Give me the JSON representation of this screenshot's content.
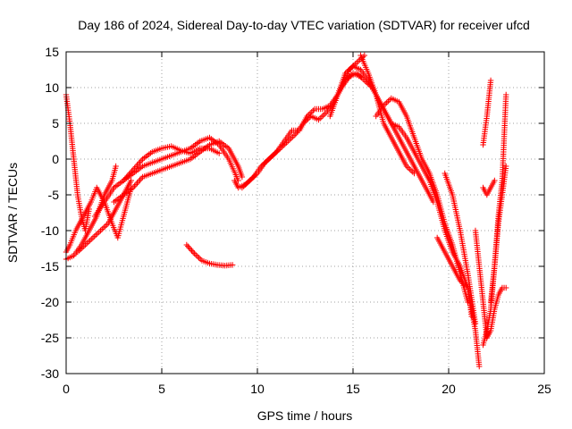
{
  "chart_data": {
    "type": "scatter",
    "title": "Day 186 of 2024, Sidereal Day-to-day VTEC variation (SDTVAR) for receiver ufcd",
    "xlabel": "GPS time / hours",
    "ylabel": "SDTVAR / TECUs",
    "xlim": [
      0,
      25
    ],
    "ylim": [
      -30,
      15
    ],
    "xticks": [
      "0",
      "5",
      "10",
      "15",
      "20",
      "25"
    ],
    "yticks": [
      "-30",
      "-25",
      "-20",
      "-15",
      "-10",
      "-5",
      "0",
      "5",
      "10",
      "15"
    ],
    "grid": true,
    "marker": "+",
    "color": "#ff0000",
    "series": [
      {
        "x": [
          0.0,
          0.2,
          0.4,
          0.6,
          0.8,
          1.0,
          1.2
        ],
        "y": [
          9,
          5,
          0,
          -5,
          -8,
          -10,
          -7
        ]
      },
      {
        "x": [
          0.0,
          0.2,
          0.5,
          0.9,
          1.3,
          1.6,
          2.0,
          2.4,
          2.7,
          3.0,
          3.4
        ],
        "y": [
          -13,
          -12,
          -10,
          -8,
          -6,
          -4,
          -6,
          -9,
          -11,
          -8,
          -4
        ]
      },
      {
        "x": [
          0.0,
          0.4,
          0.8,
          1.2,
          1.6,
          2.0,
          2.4,
          2.6
        ],
        "y": [
          -14,
          -13.5,
          -12,
          -10,
          -8,
          -5,
          -3,
          -1
        ]
      },
      {
        "x": [
          0.6,
          1.0,
          1.4,
          1.8,
          2.2,
          2.6,
          3.0,
          3.4
        ],
        "y": [
          -13,
          -12,
          -11,
          -10,
          -9,
          -7,
          -5,
          -3
        ]
      },
      {
        "x": [
          1.5,
          2.0,
          2.5,
          3.0,
          3.5,
          4.0,
          4.5,
          5.0,
          5.5,
          6.0,
          6.5,
          7.0,
          7.5,
          8.0,
          8.5,
          9.0
        ],
        "y": [
          -8,
          -6,
          -4,
          -3,
          -2,
          -1,
          -0.5,
          0,
          0.5,
          1,
          1.5,
          2.5,
          3,
          2,
          0,
          -3
        ]
      },
      {
        "x": [
          3.0,
          3.5,
          4.0,
          4.5,
          5.0,
          5.5,
          6.0,
          6.5,
          7.0,
          7.5,
          8.0
        ],
        "y": [
          -3,
          -1.5,
          0,
          1,
          1.5,
          1.8,
          1.2,
          0.8,
          1.5,
          1.5,
          0.8
        ]
      },
      {
        "x": [
          2.5,
          3.0,
          3.5,
          4.0,
          4.5,
          5.0,
          5.5,
          6.0,
          6.5,
          7.0,
          7.5,
          8.0,
          8.5,
          9.0,
          9.2
        ],
        "y": [
          -6,
          -5,
          -4,
          -2.5,
          -2,
          -1.5,
          -1,
          -0.5,
          0,
          1,
          2,
          2.5,
          1.5,
          -1,
          -2.5
        ]
      },
      {
        "x": [
          6.3,
          6.7,
          7.1,
          7.5,
          7.9,
          8.3,
          8.7
        ],
        "y": [
          -12,
          -13.2,
          -14.2,
          -14.6,
          -14.8,
          -14.9,
          -14.8
        ]
      },
      {
        "x": [
          8.8,
          9.0,
          9.4,
          9.8,
          10.2,
          10.6,
          11.0,
          11.4,
          11.8,
          12.2,
          12.6,
          13.0,
          13.4,
          13.8,
          14.2,
          14.6,
          15.0,
          15.4
        ],
        "y": [
          -3,
          -4,
          -3.5,
          -2.5,
          -1,
          0,
          1,
          2.5,
          4,
          4,
          6,
          7,
          7,
          7.5,
          9,
          11,
          12,
          11.5
        ]
      },
      {
        "x": [
          9.2,
          9.6,
          10.0,
          10.4,
          10.8,
          11.2,
          11.6,
          12.0,
          12.4,
          12.8,
          13.2,
          13.6,
          14.0,
          14.4,
          14.8,
          15.2,
          15.6
        ],
        "y": [
          -4,
          -3,
          -2,
          -0.5,
          0.5,
          1.5,
          2.5,
          3.5,
          5,
          6,
          5.5,
          6.5,
          8,
          10,
          12.5,
          13.5,
          14.5
        ]
      },
      {
        "x": [
          13.8,
          14.2,
          14.6,
          15.0,
          15.4,
          15.8,
          16.2,
          16.6,
          17.0,
          17.4,
          17.8,
          18.2
        ],
        "y": [
          6,
          9,
          12,
          13,
          12.5,
          11,
          9,
          5,
          3,
          1,
          -1,
          -2
        ]
      },
      {
        "x": [
          14.4,
          14.8,
          15.2,
          15.6,
          16.0,
          16.4,
          16.8,
          17.2,
          17.6,
          18.0,
          18.4,
          18.8,
          19.2
        ],
        "y": [
          10,
          11.5,
          12,
          11,
          10,
          8,
          6,
          4,
          2,
          0,
          -2,
          -4,
          -6
        ]
      },
      {
        "x": [
          15.4,
          15.8,
          16.2,
          16.6,
          17.0,
          17.4,
          17.8,
          18.2,
          18.6,
          19.0,
          19.4,
          19.8,
          20.2,
          20.6,
          21.0,
          21.4,
          21.6
        ],
        "y": [
          14.5,
          12,
          9,
          7,
          5,
          4.5,
          3,
          1,
          -1,
          -3,
          -6,
          -10,
          -13,
          -15,
          -18,
          -24,
          -29
        ]
      },
      {
        "x": [
          16.2,
          16.6,
          17.0,
          17.4,
          17.8,
          18.2,
          18.6,
          19.0,
          19.4,
          19.8,
          20.2,
          20.6,
          21.0
        ],
        "y": [
          6,
          7.5,
          8.5,
          8,
          6,
          3,
          0,
          -2,
          -5,
          -9,
          -12,
          -16,
          -20
        ]
      },
      {
        "x": [
          19.4,
          19.8,
          20.2,
          20.6,
          21.0,
          21.2
        ],
        "y": [
          -11,
          -13,
          -15,
          -17,
          -18,
          -22
        ]
      },
      {
        "x": [
          19.8,
          20.2,
          20.6,
          21.0,
          21.4
        ],
        "y": [
          -2,
          -5,
          -10,
          -16,
          -23
        ]
      },
      {
        "x": [
          21.4,
          21.6,
          21.8,
          22.0,
          22.2,
          22.4,
          22.6,
          22.8,
          23.0
        ],
        "y": [
          -10,
          -15,
          -20,
          -25,
          -24,
          -21,
          -19,
          -18,
          -18
        ]
      },
      {
        "x": [
          21.8,
          22.0,
          22.2,
          22.4,
          22.6,
          22.8,
          23.0
        ],
        "y": [
          -26,
          -24,
          -21,
          -15,
          -9,
          -5,
          -1
        ]
      },
      {
        "x": [
          22.2,
          22.4,
          22.6,
          22.8,
          23.0
        ],
        "y": [
          -20,
          -15,
          -8,
          -3,
          9
        ]
      },
      {
        "x": [
          21.8,
          22.0,
          22.2,
          22.4
        ],
        "y": [
          -4,
          -5,
          -4,
          -3
        ]
      },
      {
        "x": [
          21.8,
          22.0,
          22.2
        ],
        "y": [
          2,
          6,
          11
        ]
      }
    ]
  }
}
